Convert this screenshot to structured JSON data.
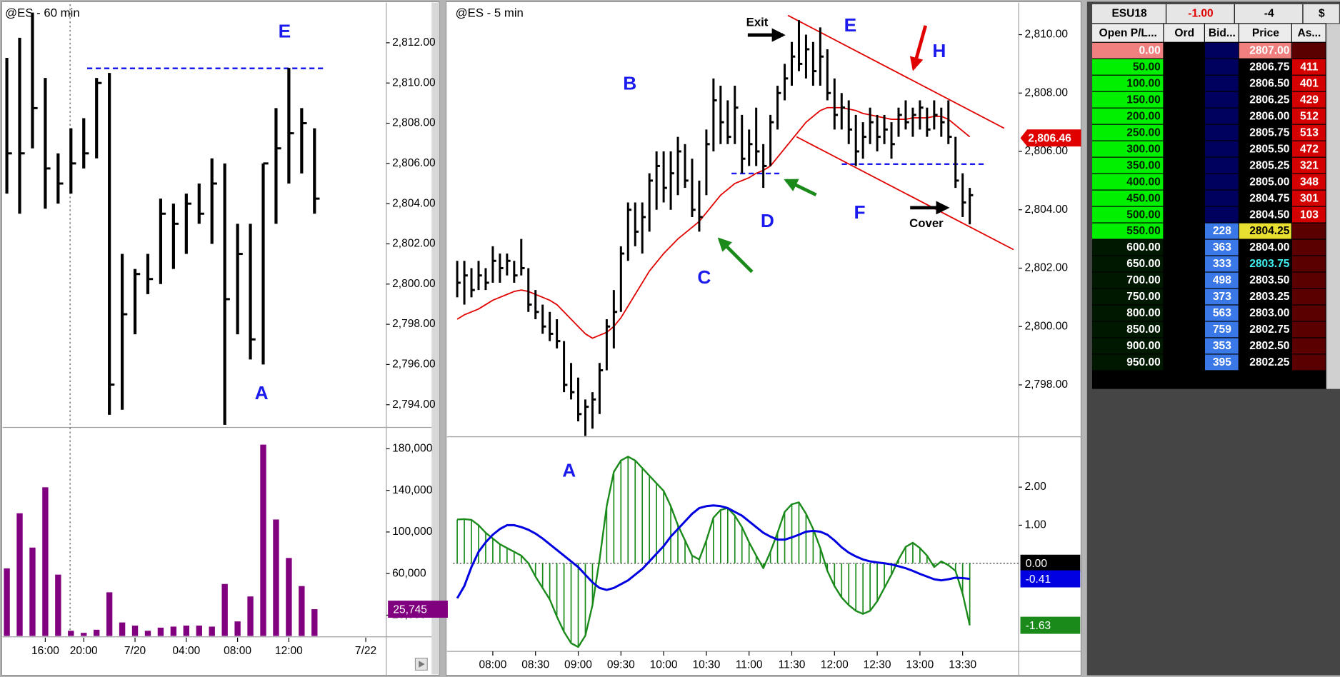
{
  "chart_data": [
    {
      "type": "ohlc",
      "title": "@ES - 60 min",
      "high": [
        2811.25,
        2812.25,
        2813.5,
        2810.25,
        2806.5,
        2807.75,
        2808.25,
        2810.25,
        2810.5,
        2801.5,
        2800.75,
        2801.5,
        2804.25,
        2804,
        2804.5,
        2805,
        2806.25,
        2806,
        2803,
        2803,
        2806,
        2808.75,
        2810.75,
        2808.75,
        2807.75
      ],
      "low": [
        2804.5,
        2803.5,
        2806.75,
        2803.75,
        2804,
        2804.5,
        2805.75,
        2806.25,
        2793.5,
        2793.75,
        2797.5,
        2799.5,
        2800,
        2800.75,
        2801.5,
        2803,
        2802,
        2793,
        2797.5,
        2796.25,
        2796,
        2803,
        2805,
        2805.5,
        2803.5
      ],
      "close": [
        2806.5,
        2806.5,
        2808.75,
        2805.75,
        2805,
        2806,
        2806.5,
        2810,
        2795,
        2798.5,
        2800.5,
        2800.25,
        2803.5,
        2803,
        2804,
        2803.5,
        2805,
        2799.25,
        2801.5,
        2797.25,
        2806,
        2806.75,
        2807.5,
        2808,
        2804.25
      ],
      "color": "#000000",
      "ylim": [
        2793,
        2814
      ],
      "yticks": [
        {
          "value": 2794,
          "label": "2,794.00"
        },
        {
          "value": 2796,
          "label": "2,796.00"
        },
        {
          "value": 2798,
          "label": "2,798.00"
        },
        {
          "value": 2800,
          "label": "2,800.00"
        },
        {
          "value": 2802,
          "label": "2,802.00"
        },
        {
          "value": 2804,
          "label": "2,804.00"
        },
        {
          "value": 2806,
          "label": "2,806.00"
        },
        {
          "value": 2808,
          "label": "2,808.00"
        },
        {
          "value": 2810,
          "label": "2,810.00"
        },
        {
          "value": 2812,
          "label": "2,812.00"
        }
      ],
      "annotations": [
        "E",
        "A"
      ]
    },
    {
      "type": "bar",
      "categories": [
        null,
        null,
        null,
        "16:00",
        null,
        null,
        "20:00",
        null,
        null,
        null,
        "7/20",
        null,
        null,
        null,
        "04:00",
        null,
        null,
        null,
        "08:00",
        null,
        null,
        null,
        "12:00",
        null,
        null,
        null,
        null,
        null,
        "7/22"
      ],
      "values": [
        65000,
        118000,
        85000,
        143000,
        59000,
        5000,
        3000,
        6000,
        42000,
        13000,
        10000,
        5000,
        8000,
        9000,
        10000,
        10000,
        9000,
        50000,
        14000,
        38000,
        184000,
        112000,
        75000,
        48000,
        25745,
        null,
        null,
        null,
        null
      ],
      "value_labels": [
        null,
        null,
        null,
        null,
        null,
        null,
        null,
        null,
        null,
        null,
        null,
        null,
        null,
        null,
        null,
        null,
        null,
        null,
        null,
        null,
        null,
        null,
        null,
        null,
        "25,745",
        null,
        null,
        null,
        null
      ],
      "color": "#800080",
      "ylim": [
        0,
        194000
      ],
      "yticks": [
        {
          "value": 20000,
          "label": "20,000"
        },
        {
          "value": 60000,
          "label": "60,000"
        },
        {
          "value": 100000,
          "label": "100,000"
        },
        {
          "value": 140000,
          "label": "140,000"
        },
        {
          "value": 180000,
          "label": "180,000"
        }
      ]
    },
    {
      "type": "ohlc",
      "title": "@ES - 5 min",
      "high": [
        2802.25,
        2802.25,
        2802,
        2802.25,
        2802,
        2802.75,
        2802.5,
        2802.5,
        2802.25,
        2803,
        2802,
        2801.25,
        2800.75,
        2800.5,
        2800.25,
        2799.5,
        2798.75,
        2798.25,
        2797.5,
        2797.75,
        2798.75,
        2800.25,
        2801.25,
        2802.75,
        2804.25,
        2804.25,
        2804.25,
        2805.25,
        2806,
        2806,
        2806,
        2806.5,
        2806.25,
        2805.75,
        2805,
        2806.75,
        2808.5,
        2808.25,
        2807.75,
        2808.25,
        2807.25,
        2806.75,
        2807.5,
        2806.25,
        2807.25,
        2808.25,
        2809,
        2809.75,
        2810.5,
        2810,
        2809.75,
        2810.25,
        2809.5,
        2808.5,
        2808,
        2807.75,
        2807.25,
        2807,
        2807.5,
        2807.25,
        2807.25,
        2807,
        2807.5,
        2807.75,
        2807.5,
        2807.75,
        2807.5,
        2807.75,
        2807.5,
        2807.75,
        2806.5,
        2805.25,
        2804.75
      ],
      "low": [
        2801,
        2800.75,
        2801,
        2801.25,
        2801.25,
        2801.5,
        2801.5,
        2801.75,
        2801.5,
        2801.75,
        2800.5,
        2800.25,
        2799.75,
        2799.5,
        2799.25,
        2797.75,
        2797.5,
        2796.75,
        2796.25,
        2796.5,
        2797,
        2798.5,
        2799.25,
        2800.5,
        2802.25,
        2802.75,
        2802.5,
        2803.25,
        2804,
        2804.25,
        2804,
        2804.5,
        2804.75,
        2803.75,
        2803.25,
        2804.5,
        2806,
        2806.25,
        2806.25,
        2806.25,
        2805.25,
        2805.5,
        2805.5,
        2804.75,
        2805.5,
        2806.75,
        2807.75,
        2808.25,
        2808.75,
        2808.5,
        2808.25,
        2808.25,
        2807.75,
        2806.75,
        2806.75,
        2806.25,
        2805.5,
        2805.75,
        2806.25,
        2806,
        2806.25,
        2805.75,
        2806.5,
        2806.75,
        2806.5,
        2806.75,
        2806.5,
        2806.75,
        2806.5,
        2806.25,
        2804.75,
        2803.75,
        2803.5
      ],
      "close": [
        2801.5,
        2801.75,
        2801.25,
        2801.75,
        2801.5,
        2802.25,
        2802,
        2802.25,
        2801.75,
        2802,
        2800.75,
        2800.5,
        2800,
        2799.75,
        2799.5,
        2798,
        2797.75,
        2797,
        2797.25,
        2797.5,
        2798.5,
        2800,
        2800.5,
        2802.5,
        2804,
        2803.25,
        2803.75,
        2805,
        2805.5,
        2804.75,
        2805.25,
        2806,
        2805,
        2804,
        2803.75,
        2806.25,
        2807.75,
        2807,
        2806.5,
        2807.5,
        2805.75,
        2806.25,
        2806,
        2805.5,
        2807,
        2808,
        2808.5,
        2809.25,
        2809,
        2809.5,
        2808.75,
        2809.25,
        2808,
        2807.25,
        2807.5,
        2806.75,
        2806,
        2806.5,
        2807,
        2806.5,
        2806.75,
        2806.25,
        2807.25,
        2807,
        2807.25,
        2807.5,
        2806.75,
        2807.25,
        2807,
        2806.5,
        2805,
        2804.25,
        2804.5
      ],
      "color": "#000000",
      "series": [
        {
          "color": "#e00000",
          "values": [
            2800.25,
            2800.4,
            2800.5,
            2800.6,
            2800.75,
            2800.9,
            2801,
            2801.1,
            2801.2,
            2801.25,
            2801.2,
            2801.1,
            2801,
            2800.9,
            2800.75,
            2800.5,
            2800.25,
            2800,
            2799.75,
            2799.6,
            2799.7,
            2799.8,
            2800,
            2800.3,
            2800.7,
            2801.1,
            2801.5,
            2801.9,
            2802.2,
            2802.5,
            2802.75,
            2803,
            2803.2,
            2803.4,
            2803.6,
            2803.9,
            2804.2,
            2804.5,
            2804.7,
            2804.9,
            2805,
            2805.1,
            2805.25,
            2805.35,
            2805.5,
            2805.8,
            2806.1,
            2806.4,
            2806.7,
            2807,
            2807.2,
            2807.4,
            2807.5,
            2807.5,
            2807.5,
            2807.45,
            2807.4,
            2807.3,
            2807.25,
            2807.2,
            2807.15,
            2807.1,
            2807.1,
            2807.1,
            2807.15,
            2807.15,
            2807.15,
            2807.2,
            2807.2,
            2807.1,
            2806.9,
            2806.7,
            2806.5
          ]
        }
      ],
      "price_marker": {
        "value": 2806.46,
        "label": "2,806.46"
      },
      "ylim": [
        2796.25,
        2811.1
      ],
      "yticks": [
        {
          "value": 2798,
          "label": "2,798.00"
        },
        {
          "value": 2800,
          "label": "2,800.00"
        },
        {
          "value": 2802,
          "label": "2,802.00"
        },
        {
          "value": 2804,
          "label": "2,804.00"
        },
        {
          "value": 2806,
          "label": "2,806.00"
        },
        {
          "value": 2808,
          "label": "2,808.00"
        },
        {
          "value": 2810,
          "label": "2,810.00"
        }
      ],
      "annotations": [
        "B",
        "C",
        "D",
        "E",
        "F",
        "H",
        "A",
        "Exit",
        "Cover"
      ]
    },
    {
      "type": "bar",
      "categories": [
        null,
        null,
        null,
        null,
        null,
        "08:00",
        null,
        null,
        null,
        null,
        null,
        "08:30",
        null,
        null,
        null,
        null,
        null,
        "09:00",
        null,
        null,
        null,
        null,
        null,
        "09:30",
        null,
        null,
        null,
        null,
        null,
        "10:00",
        null,
        null,
        null,
        null,
        null,
        "10:30",
        null,
        null,
        null,
        null,
        null,
        "11:00",
        null,
        null,
        null,
        null,
        null,
        "11:30",
        null,
        null,
        null,
        null,
        null,
        "12:00",
        null,
        null,
        null,
        null,
        null,
        "12:30",
        null,
        null,
        null,
        null,
        null,
        "13:00",
        null,
        null,
        null,
        null,
        null,
        "13:30",
        null
      ],
      "values": [
        1.15,
        1.16,
        1.14,
        1,
        0.8,
        0.65,
        0.5,
        0.4,
        0.3,
        0.2,
        0,
        -0.35,
        -0.65,
        -0.95,
        -1.4,
        -1.8,
        -2.1,
        -2.2,
        -1.9,
        -1.1,
        0.1,
        1.5,
        2.4,
        2.7,
        2.8,
        2.7,
        2.5,
        2.3,
        2.1,
        1.9,
        1.5,
        1,
        0.6,
        0.2,
        0.1,
        0.6,
        1.2,
        1.4,
        1.45,
        1.25,
        0.95,
        0.55,
        0.2,
        -0.13,
        0.3,
        0.8,
        1.35,
        1.55,
        1.6,
        1.3,
        0.9,
        0.4,
        -0.2,
        -0.6,
        -0.9,
        -1.1,
        -1.25,
        -1.33,
        -1.25,
        -1,
        -0.65,
        -0.3,
        0.1,
        0.43,
        0.54,
        0.4,
        0.2,
        -0.1,
        0.05,
        -0.05,
        -0.2,
        -0.8,
        -1.63
      ],
      "value_labels": [
        null,
        null,
        null,
        null,
        null,
        null,
        null,
        null,
        null,
        null,
        null,
        null,
        null,
        null,
        null,
        null,
        null,
        null,
        null,
        null,
        null,
        null,
        null,
        null,
        null,
        null,
        null,
        null,
        null,
        null,
        null,
        null,
        null,
        null,
        null,
        null,
        null,
        null,
        null,
        null,
        null,
        null,
        null,
        null,
        null,
        null,
        null,
        null,
        null,
        null,
        null,
        null,
        null,
        null,
        null,
        null,
        null,
        null,
        null,
        null,
        null,
        null,
        null,
        null,
        null,
        null,
        null,
        null,
        null,
        null,
        null,
        null,
        "-1.63"
      ],
      "color": "#1a8a1a",
      "series": [
        {
          "color": "#0000e0",
          "values": [
            -0.92,
            -0.6,
            -0.1,
            0.3,
            0.55,
            0.75,
            0.9,
            1,
            1,
            0.95,
            0.88,
            0.78,
            0.65,
            0.5,
            0.35,
            0.2,
            0.05,
            -0.1,
            -0.3,
            -0.5,
            -0.65,
            -0.7,
            -0.65,
            -0.55,
            -0.45,
            -0.3,
            -0.15,
            0.05,
            0.25,
            0.45,
            0.7,
            0.9,
            1.1,
            1.3,
            1.45,
            1.5,
            1.52,
            1.5,
            1.45,
            1.35,
            1.25,
            1.1,
            0.95,
            0.8,
            0.7,
            0.62,
            0.62,
            0.68,
            0.75,
            0.83,
            0.85,
            0.83,
            0.75,
            0.6,
            0.42,
            0.28,
            0.18,
            0.1,
            0.05,
            0.02,
            0,
            -0.03,
            -0.08,
            -0.13,
            -0.2,
            -0.28,
            -0.35,
            -0.42,
            -0.45,
            -0.42,
            -0.38,
            -0.39,
            -0.41
          ],
          "value_labels": [
            null,
            null,
            null,
            null,
            null,
            null,
            null,
            null,
            null,
            null,
            null,
            null,
            null,
            null,
            null,
            null,
            null,
            null,
            null,
            null,
            null,
            null,
            null,
            null,
            null,
            null,
            null,
            null,
            null,
            null,
            null,
            null,
            null,
            null,
            null,
            null,
            null,
            null,
            null,
            null,
            null,
            null,
            null,
            null,
            null,
            null,
            null,
            null,
            null,
            null,
            null,
            null,
            null,
            null,
            null,
            null,
            null,
            null,
            null,
            null,
            null,
            null,
            null,
            null,
            null,
            null,
            null,
            null,
            null,
            null,
            null,
            null,
            "-0.41"
          ]
        }
      ],
      "ylim": [
        -2.27,
        3.3
      ],
      "yticks": [
        {
          "value": 0,
          "label": "0.00"
        },
        {
          "value": 1,
          "label": "1.00"
        },
        {
          "value": 2,
          "label": "2.00"
        }
      ]
    }
  ],
  "ladder": {
    "header": [
      "ESU18",
      "-1.00",
      "-4",
      "$"
    ],
    "columns": [
      "Open P/L...",
      "Ord",
      "Bid...",
      "Price",
      "As..."
    ],
    "rows": [
      [
        "0.00",
        null,
        null,
        "2807.00",
        null
      ],
      [
        "50.00",
        null,
        null,
        "2806.75",
        "411"
      ],
      [
        "100.00",
        null,
        null,
        "2806.50",
        "401"
      ],
      [
        "150.00",
        null,
        null,
        "2806.25",
        "429"
      ],
      [
        "200.00",
        null,
        null,
        "2806.00",
        "512"
      ],
      [
        "250.00",
        null,
        null,
        "2805.75",
        "513"
      ],
      [
        "300.00",
        null,
        null,
        "2805.50",
        "472"
      ],
      [
        "350.00",
        null,
        null,
        "2805.25",
        "321"
      ],
      [
        "400.00",
        null,
        null,
        "2805.00",
        "348"
      ],
      [
        "450.00",
        null,
        null,
        "2804.75",
        "301"
      ],
      [
        "500.00",
        null,
        null,
        "2804.50",
        "103"
      ],
      [
        "550.00",
        null,
        "228",
        "2804.25",
        null
      ],
      [
        "600.00",
        null,
        "363",
        "2804.00",
        null
      ],
      [
        "650.00",
        null,
        "333",
        "2803.75",
        null
      ],
      [
        "700.00",
        null,
        "498",
        "2803.50",
        null
      ],
      [
        "750.00",
        null,
        "373",
        "2803.25",
        null
      ],
      [
        "800.00",
        null,
        "563",
        "2803.00",
        null
      ],
      [
        "850.00",
        null,
        "759",
        "2802.75",
        null
      ],
      [
        "900.00",
        null,
        "353",
        "2802.50",
        null
      ],
      [
        "950.00",
        null,
        "395",
        "2802.25",
        null
      ]
    ]
  }
}
